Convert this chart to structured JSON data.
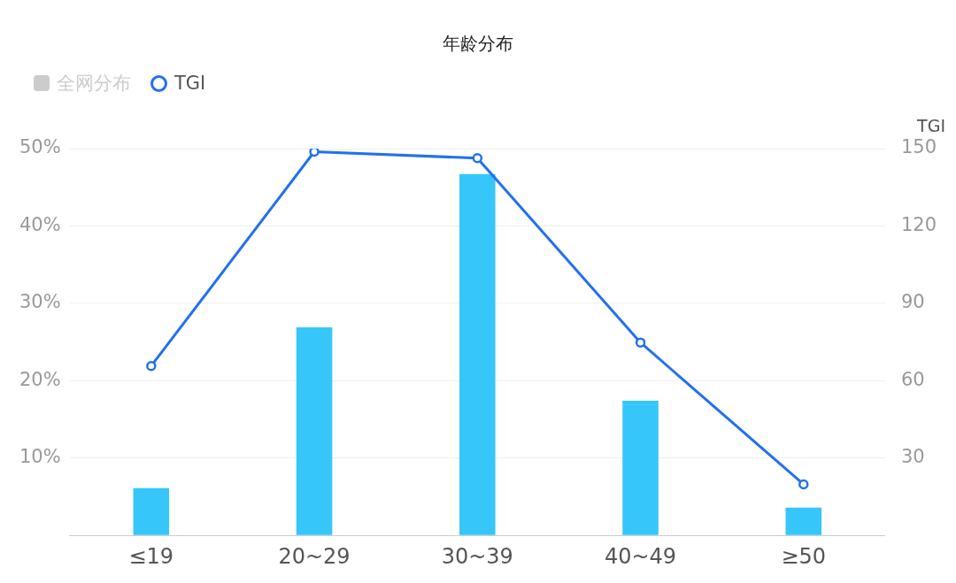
{
  "chart_data": {
    "type": "bar",
    "title": "年龄分布",
    "y2label": "TGI",
    "categories": [
      "≤19",
      "20~29",
      "30~39",
      "40~49",
      "≥50"
    ],
    "series": [
      {
        "color": "#36c6fa",
        "values": [
          6.1,
          26.9,
          46.7,
          17.4,
          3.6
        ]
      },
      {
        "name": "全网分布",
        "color": "#cccccc",
        "values": [
          null,
          null,
          null,
          null,
          null
        ]
      },
      {
        "name": "TGI",
        "type": "line",
        "axis": "y2",
        "color": "#2270ee",
        "marker": "circle",
        "values": [
          65.7,
          148.8,
          146.3,
          74.8,
          19.8
        ]
      }
    ],
    "ylim": [
      0,
      50
    ],
    "yticks": [
      {
        "value": 0,
        "label": null
      },
      {
        "value": 10,
        "label": "10%"
      },
      {
        "value": 20,
        "label": "20%"
      },
      {
        "value": 30,
        "label": "30%"
      },
      {
        "value": 40,
        "label": "40%"
      },
      {
        "value": 50,
        "label": "50%"
      }
    ],
    "y2lim": [
      0,
      150
    ],
    "y2ticks": [
      30,
      60,
      90,
      120,
      150
    ],
    "grid": "y",
    "legend": "top left"
  }
}
